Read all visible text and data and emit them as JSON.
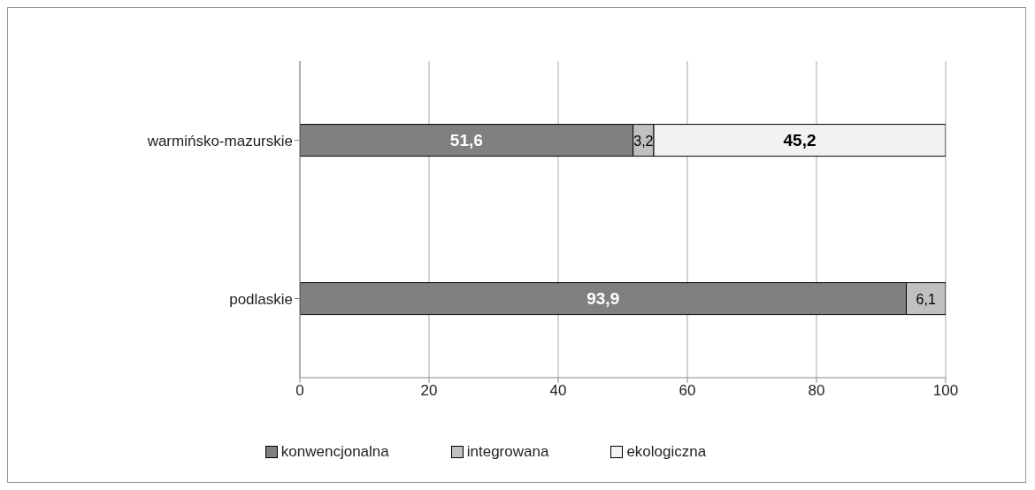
{
  "chart_data": {
    "type": "bar",
    "orientation": "horizontal",
    "stacked": true,
    "categories": [
      "warmińsko-mazurskie",
      "podlaskie"
    ],
    "series": [
      {
        "name": "konwencjonalna",
        "color": "#808080",
        "values": [
          51.6,
          93.9
        ],
        "value_labels": [
          "51,6",
          "93,9"
        ]
      },
      {
        "name": "integrowana",
        "color": "#c0c0c0",
        "values": [
          3.2,
          6.1
        ],
        "value_labels": [
          "3,2",
          "6,1"
        ]
      },
      {
        "name": "ekologiczna",
        "color": "#f2f2f2",
        "values": [
          45.2,
          null
        ],
        "value_labels": [
          "45,2",
          null
        ]
      }
    ],
    "xlim": [
      0,
      100
    ],
    "xticks": [
      0,
      20,
      40,
      60,
      80,
      100
    ],
    "grid": "x",
    "legend": "bottom"
  }
}
